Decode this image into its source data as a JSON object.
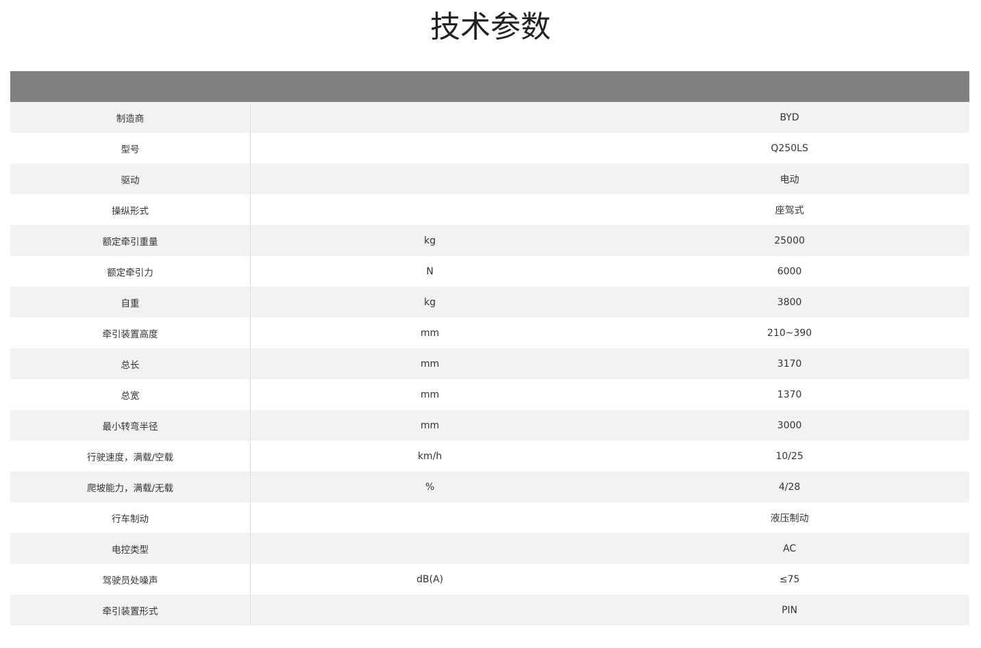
{
  "title": "技术参数",
  "rows": [
    {
      "name": "制造商",
      "unit": "",
      "value": "BYD"
    },
    {
      "name": "型号",
      "unit": "",
      "value": "Q250LS"
    },
    {
      "name": "驱动",
      "unit": "",
      "value": "电动"
    },
    {
      "name": "操纵形式",
      "unit": "",
      "value": "座驾式"
    },
    {
      "name": "额定牵引重量",
      "unit": "kg",
      "value": "25000"
    },
    {
      "name": "额定牵引力",
      "unit": "N",
      "value": "6000"
    },
    {
      "name": "自重",
      "unit": "kg",
      "value": "3800"
    },
    {
      "name": "牵引装置高度",
      "unit": "mm",
      "value": "210~390"
    },
    {
      "name": "总长",
      "unit": "mm",
      "value": "3170"
    },
    {
      "name": "总宽",
      "unit": "mm",
      "value": "1370"
    },
    {
      "name": "最小转弯半径",
      "unit": "mm",
      "value": "3000"
    },
    {
      "name": "行驶速度，满载/空载",
      "unit": "km/h",
      "value": "10/25"
    },
    {
      "name": "爬坡能力，满载/无载",
      "unit": "%",
      "value": "4/28"
    },
    {
      "name": "行车制动",
      "unit": "",
      "value": "液压制动"
    },
    {
      "name": "电控类型",
      "unit": "",
      "value": "AC"
    },
    {
      "name": "驾驶员处噪声",
      "unit": "dB(A)",
      "value": "≤75"
    },
    {
      "name": "牵引装置形式",
      "unit": "",
      "value": "PIN"
    }
  ],
  "colors": {
    "header": "#808080",
    "row_alt": "#f2f2f2",
    "divider": "#dcdcdc"
  }
}
